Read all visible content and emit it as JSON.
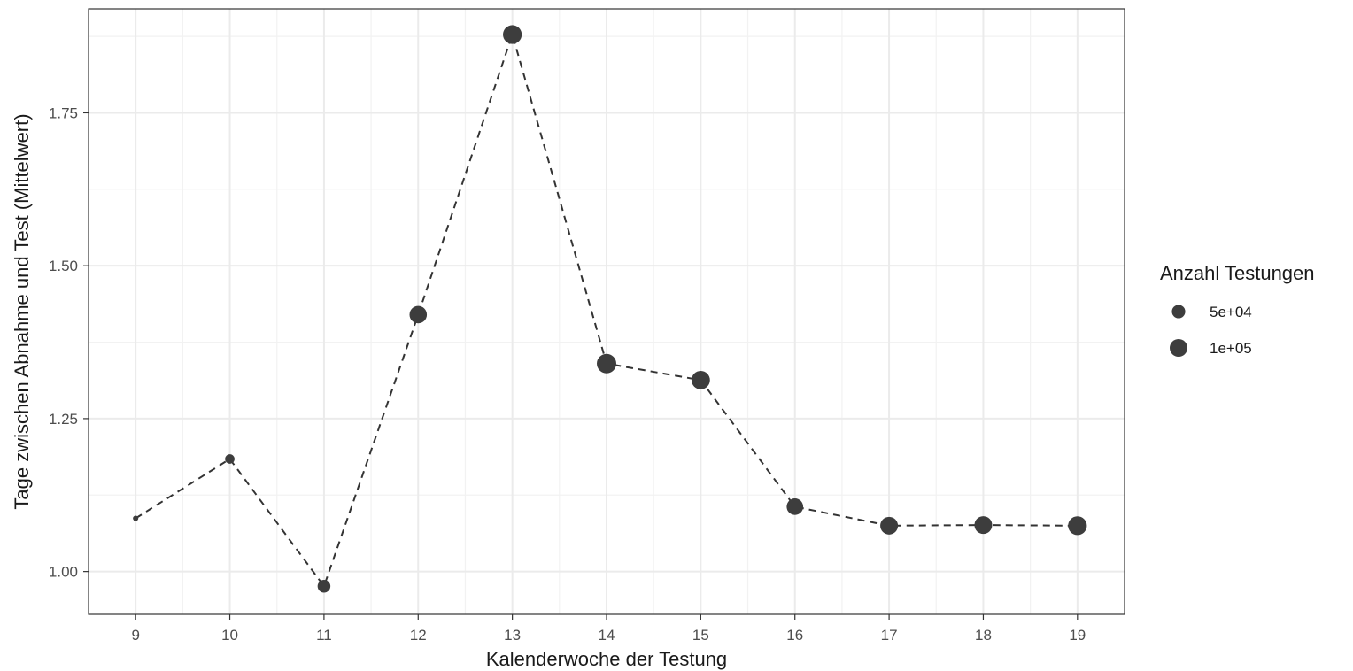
{
  "chart_data": {
    "type": "line",
    "xlabel": "Kalenderwoche der Testung",
    "ylabel": "Tage zwischen Abnahme und Test (Mittelwert)",
    "x": [
      9,
      10,
      11,
      12,
      13,
      14,
      15,
      16,
      17,
      18,
      19
    ],
    "y": [
      1.087,
      1.184,
      0.976,
      1.42,
      1.878,
      1.34,
      1.313,
      1.106,
      1.075,
      1.076,
      1.075
    ],
    "size_values": [
      3000,
      20000,
      45000,
      95000,
      115000,
      125000,
      110000,
      85000,
      100000,
      100000,
      115000
    ],
    "xlim": [
      8.5,
      19.5
    ],
    "ylim": [
      0.93,
      1.92
    ],
    "x_ticks": [
      "9",
      "10",
      "11",
      "12",
      "13",
      "14",
      "15",
      "16",
      "17",
      "18",
      "19"
    ],
    "y_ticks": [
      1.0,
      1.25,
      1.5,
      1.75
    ],
    "y_tick_labels": [
      "1.00",
      "1.25",
      "1.50",
      "1.75"
    ],
    "line_style": "dashed",
    "point_color": "#3d3d3d",
    "grid": true,
    "legend": {
      "title": "Anzahl Testungen",
      "position": "right",
      "entries": [
        {
          "label": "5e+04",
          "size_value": 50000
        },
        {
          "label": "1e+05",
          "size_value": 100000
        }
      ]
    }
  }
}
